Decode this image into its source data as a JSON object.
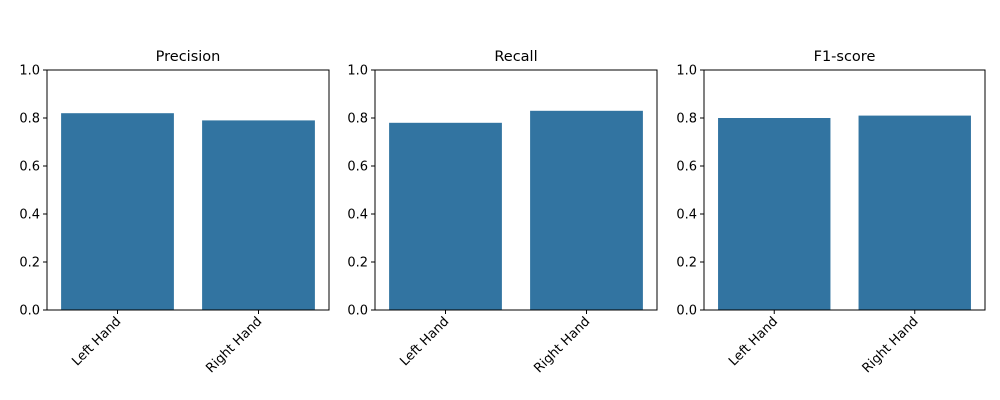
{
  "chart_data": [
    {
      "type": "bar",
      "title": "Precision",
      "categories": [
        "Left Hand",
        "Right Hand"
      ],
      "values": [
        0.82,
        0.79
      ],
      "ylim": [
        0,
        1
      ],
      "yticks": [
        "0.0",
        "0.2",
        "0.4",
        "0.6",
        "0.8",
        "1.0"
      ],
      "xlabel": "",
      "ylabel": "",
      "color": "#3274a1",
      "grid": false
    },
    {
      "type": "bar",
      "title": "Recall",
      "categories": [
        "Left Hand",
        "Right Hand"
      ],
      "values": [
        0.78,
        0.83
      ],
      "ylim": [
        0,
        1
      ],
      "yticks": [
        "0.0",
        "0.2",
        "0.4",
        "0.6",
        "0.8",
        "1.0"
      ],
      "xlabel": "",
      "ylabel": "",
      "color": "#3274a1",
      "grid": false
    },
    {
      "type": "bar",
      "title": "F1-score",
      "categories": [
        "Left Hand",
        "Right Hand"
      ],
      "values": [
        0.8,
        0.81
      ],
      "ylim": [
        0,
        1
      ],
      "yticks": [
        "0.0",
        "0.2",
        "0.4",
        "0.6",
        "0.8",
        "1.0"
      ],
      "xlabel": "",
      "ylabel": "",
      "color": "#3274a1",
      "grid": false
    }
  ]
}
